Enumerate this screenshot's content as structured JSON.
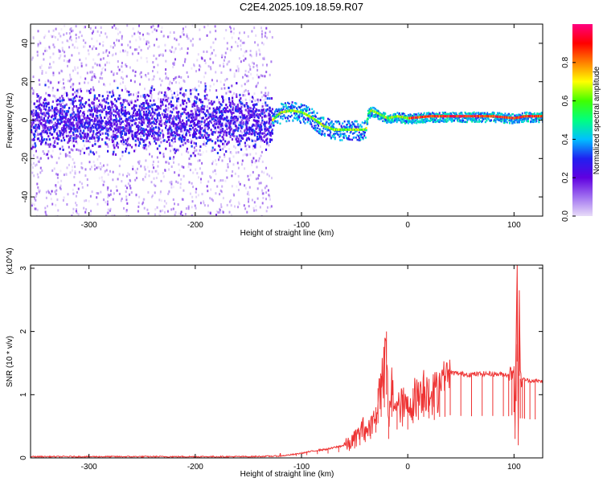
{
  "title": "C2E4.2025.109.18.59.R07",
  "chart_data": [
    {
      "type": "heatmap",
      "title": "C2E4.2025.109.18.59.R07",
      "xlabel": "Height of straight line (km)",
      "ylabel": "Frequency (Hz)",
      "xlim": [
        -355,
        127
      ],
      "ylim": [
        -50,
        50
      ],
      "xticks": [
        -300,
        -200,
        -100,
        0,
        100
      ],
      "yticks": [
        -40,
        -20,
        0,
        20,
        40
      ],
      "colorbar": {
        "label": "Normalized spectral amplitude",
        "range": [
          0,
          1
        ],
        "ticks": [
          0.0,
          0.2,
          0.4,
          0.6,
          0.8
        ],
        "tick_labels": [
          "0.0",
          "0.2",
          "0.4",
          "0.6",
          "0.8"
        ],
        "colors": [
          "#e8dcf8",
          "#a070f0",
          "#6000e0",
          "#2020f0",
          "#00c0ff",
          "#00ff80",
          "#40ff00",
          "#ffff00",
          "#ff8000",
          "#ff0000",
          "#ff0080"
        ]
      },
      "ridge": {
        "x": [
          -355,
          -300,
          -250,
          -200,
          -150,
          -128,
          -120,
          -110,
          -100,
          -90,
          -80,
          -70,
          -60,
          -50,
          -40,
          -38,
          -35,
          -30,
          -20,
          -10,
          0,
          20,
          50,
          80,
          100,
          110,
          127
        ],
        "freq": [
          0,
          0,
          0,
          0,
          0,
          0,
          4,
          5,
          4,
          1,
          -3,
          -5,
          -5,
          -5,
          -5,
          3,
          5,
          4,
          1,
          2,
          1,
          2,
          2,
          2,
          1,
          2,
          2
        ]
      },
      "noise_region_x": [
        -355,
        -128
      ]
    },
    {
      "type": "line",
      "xlabel": "Height of straight line (km)",
      "ylabel": "SNR (10 * v/v)",
      "y_multiplier": "(x10^4)",
      "xlim": [
        -355,
        127
      ],
      "ylim": [
        0,
        3.05
      ],
      "xticks": [
        -300,
        -200,
        -100,
        0,
        100
      ],
      "yticks": [
        0,
        1,
        2,
        3
      ],
      "color": "#ee3333",
      "x": [
        -355,
        -300,
        -250,
        -200,
        -150,
        -120,
        -105,
        -95,
        -85,
        -75,
        -65,
        -55,
        -50,
        -45,
        -40,
        -35,
        -30,
        -28,
        -25,
        -22,
        -20,
        -18,
        -15,
        -10,
        -5,
        0,
        5,
        10,
        15,
        20,
        25,
        30,
        35,
        40,
        50,
        60,
        70,
        80,
        90,
        95,
        98,
        100,
        101,
        102,
        103,
        104,
        105,
        106,
        108,
        110,
        115,
        120,
        127
      ],
      "y": [
        0.02,
        0.02,
        0.02,
        0.02,
        0.02,
        0.03,
        0.06,
        0.09,
        0.12,
        0.14,
        0.18,
        0.22,
        0.3,
        0.4,
        0.5,
        0.6,
        0.8,
        1.1,
        1.3,
        1.6,
        2.0,
        0.6,
        1.3,
        0.9,
        1.0,
        0.9,
        1.1,
        1.2,
        1.3,
        1.25,
        1.2,
        1.3,
        1.3,
        1.35,
        1.33,
        1.32,
        1.33,
        1.33,
        1.32,
        1.32,
        1.35,
        1.45,
        0.6,
        1.8,
        3.05,
        0.4,
        2.6,
        1.25,
        1.25,
        1.24,
        1.22,
        1.22,
        1.21
      ]
    }
  ]
}
